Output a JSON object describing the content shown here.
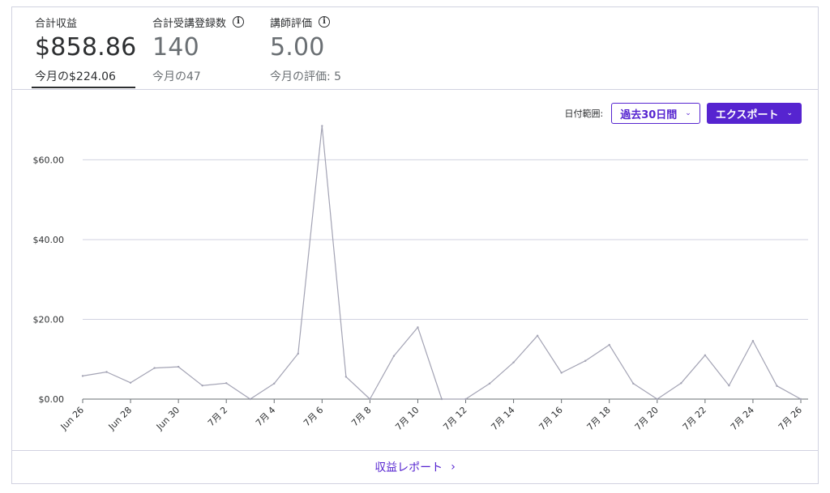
{
  "stats": [
    {
      "label": "合計収益",
      "value": "$858.86",
      "sub": "今月の$224.06",
      "info": false
    },
    {
      "label": "合計受講登録数",
      "value": "140",
      "sub": "今月の47",
      "info": true
    },
    {
      "label": "講師評価",
      "value": "5.00",
      "sub": "今月の評価: 5",
      "info": true
    }
  ],
  "controls": {
    "date_range_label": "日付範囲:",
    "date_range_value": "過去30日間",
    "export_label": "エクスポート"
  },
  "footer": {
    "link_label": "収益レポート",
    "chevron": "›"
  },
  "icons": {
    "info": "info-icon",
    "dropdown": "chevron-down-icon",
    "link": "chevron-right-icon"
  },
  "colors": {
    "accent": "#5624d0",
    "line": "#a3a3b4",
    "grid": "#d1d2e0"
  },
  "chart_data": {
    "type": "line",
    "title": "",
    "xlabel": "",
    "ylabel": "",
    "ylim": [
      0,
      68
    ],
    "yticks": [
      "$0.00",
      "$20.00",
      "$40.00",
      "$60.00"
    ],
    "ytick_values": [
      0,
      20,
      40,
      60
    ],
    "x": [
      "Jun 26",
      "Jun 27",
      "Jun 28",
      "Jun 29",
      "Jun 30",
      "7月 1",
      "7月 2",
      "7月 3",
      "7月 4",
      "7月 5",
      "7月 6",
      "7月 7",
      "7月 8",
      "7月 9",
      "7月 10",
      "7月 11",
      "7月 12",
      "7月 13",
      "7月 14",
      "7月 15",
      "7月 16",
      "7月 17",
      "7月 18",
      "7月 19",
      "7月 20",
      "7月 21",
      "7月 22",
      "7月 23",
      "7月 24",
      "7月 25",
      "7月 26"
    ],
    "xtick_labels": [
      "Jun 26",
      "Jun 28",
      "Jun 30",
      "7月 2",
      "7月 4",
      "7月 6",
      "7月 8",
      "7月 10",
      "7月 12",
      "7月 14",
      "7月 16",
      "7月 18",
      "7月 20",
      "7月 22",
      "7月 24",
      "7月 26"
    ],
    "series": [
      {
        "values": [
          5.8,
          6.8,
          4.1,
          7.8,
          8.1,
          3.4,
          4.0,
          0.0,
          3.9,
          11.4,
          68.5,
          5.6,
          0.0,
          10.8,
          18.0,
          0.0,
          0.0,
          3.9,
          9.2,
          15.9,
          6.6,
          9.6,
          13.6,
          3.9,
          0.0,
          4.0,
          11.0,
          3.4,
          14.6,
          3.3,
          0.0
        ]
      }
    ],
    "grid": true
  }
}
